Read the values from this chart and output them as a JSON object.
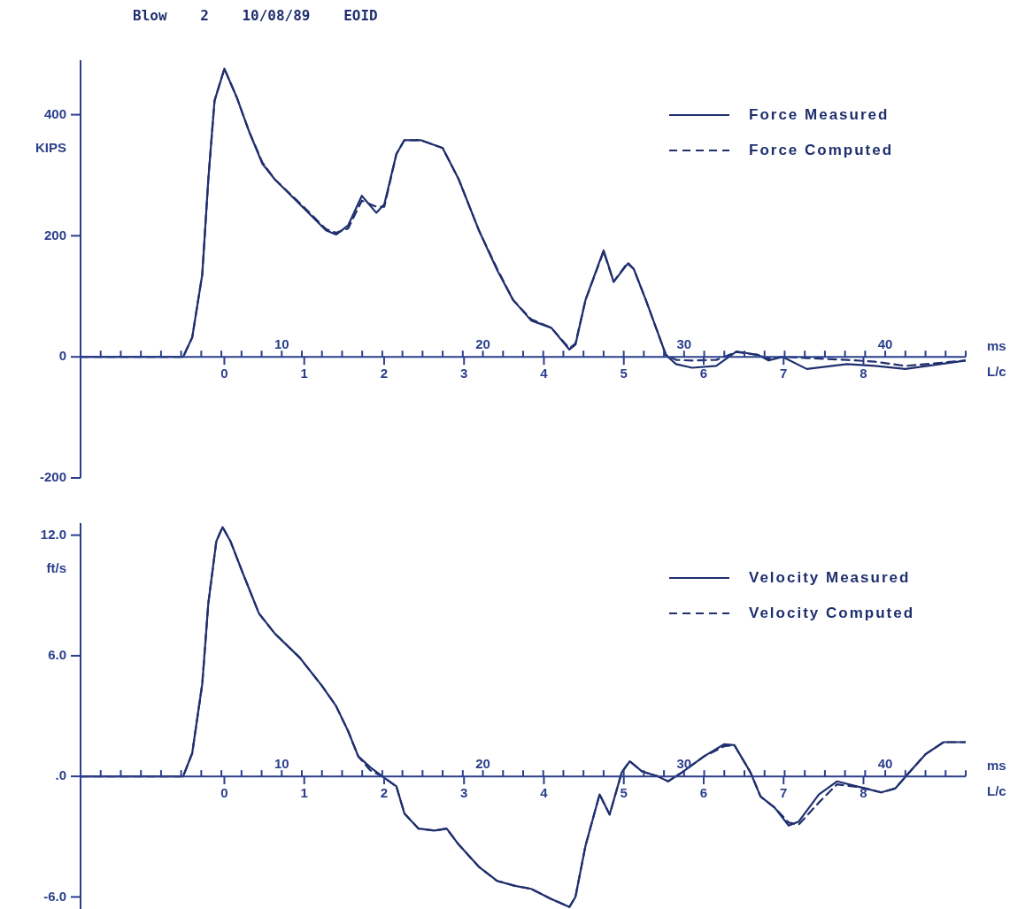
{
  "chart_data": [
    {
      "type": "line",
      "title": "Blow 2 10/08/89 EOID",
      "ylabel": "KIPS",
      "xlabel": "ms",
      "x2label": "L/c",
      "xlim": [
        0,
        44
      ],
      "ylim": [
        -200,
        490
      ],
      "x2lim": [
        -1.8,
        9.28
      ],
      "xticks": [
        {
          "value": 1,
          "label": null
        },
        {
          "value": 2,
          "label": null
        },
        {
          "value": 3,
          "label": null
        },
        {
          "value": 4,
          "label": null
        },
        {
          "value": 5,
          "label": null
        },
        {
          "value": 6,
          "label": null
        },
        {
          "value": 7,
          "label": null
        },
        {
          "value": 8,
          "label": null
        },
        {
          "value": 9,
          "label": null
        },
        10,
        {
          "value": 11,
          "label": null
        },
        {
          "value": 12,
          "label": null
        },
        {
          "value": 13,
          "label": null
        },
        {
          "value": 14,
          "label": null
        },
        {
          "value": 15,
          "label": null
        },
        {
          "value": 16,
          "label": null
        },
        {
          "value": 17,
          "label": null
        },
        {
          "value": 18,
          "label": null
        },
        {
          "value": 19,
          "label": null
        },
        20,
        {
          "value": 21,
          "label": null
        },
        {
          "value": 22,
          "label": null
        },
        {
          "value": 23,
          "label": null
        },
        {
          "value": 24,
          "label": null
        },
        {
          "value": 25,
          "label": null
        },
        {
          "value": 26,
          "label": null
        },
        {
          "value": 27,
          "label": null
        },
        {
          "value": 28,
          "label": null
        },
        {
          "value": 29,
          "label": null
        },
        30,
        {
          "value": 31,
          "label": null
        },
        {
          "value": 32,
          "label": null
        },
        {
          "value": 33,
          "label": null
        },
        {
          "value": 34,
          "label": null
        },
        {
          "value": 35,
          "label": null
        },
        {
          "value": 36,
          "label": null
        },
        {
          "value": 37,
          "label": null
        },
        {
          "value": 38,
          "label": null
        },
        {
          "value": 39,
          "label": null
        },
        40,
        {
          "value": 41,
          "label": null
        },
        {
          "value": 42,
          "label": null
        },
        {
          "value": 43,
          "label": null
        },
        {
          "value": 44,
          "label": null
        }
      ],
      "x2ticks": [
        0,
        1,
        2,
        3,
        4,
        5,
        6,
        7,
        8
      ],
      "yticks": [
        -200,
        0,
        200,
        400
      ],
      "legend": "top right",
      "marker": "none",
      "series": [
        {
          "name": "Force Measured",
          "color": "#1f2f6e",
          "line_style": "solid",
          "x": [
            0,
            5.1,
            5.55,
            6.05,
            6.35,
            6.66,
            7.15,
            7.76,
            8.38,
            9.04,
            9.66,
            10.9,
            12.2,
            12.7,
            13.3,
            13.98,
            14.7,
            15.1,
            15.7,
            16.1,
            16.9,
            18.0,
            18.8,
            19.8,
            20.7,
            21.5,
            22.4,
            23.4,
            24.3,
            24.6,
            25.1,
            26.0,
            26.5,
            27.2,
            27.5,
            28.1,
            29.1,
            29.6,
            30.4,
            31.6,
            32.6,
            33.7,
            34.2,
            34.9,
            36.1,
            38.1,
            39.5,
            41.0,
            44
          ],
          "values": [
            0,
            0,
            32,
            136,
            293,
            423,
            476,
            429,
            372,
            319,
            293,
            252,
            209,
            202,
            217,
            266,
            238,
            252,
            335,
            358,
            358,
            345,
            293,
            209,
            144,
            94,
            60,
            48,
            12,
            20,
            94,
            176,
            124,
            154,
            145,
            94,
            3,
            -12,
            -18,
            -15,
            9,
            3,
            -6,
            0,
            -20,
            -12,
            -15,
            -20,
            -6
          ]
        },
        {
          "name": "Force Computed",
          "color": "#1f2f6e",
          "line_style": "dashed",
          "x": [
            0,
            5.1,
            5.55,
            6.05,
            6.35,
            6.66,
            7.15,
            7.76,
            8.38,
            9.04,
            9.66,
            10.9,
            12.2,
            12.7,
            13.3,
            13.98,
            14.7,
            15.1,
            15.7,
            16.1,
            16.9,
            18.0,
            18.8,
            19.8,
            20.7,
            21.5,
            22.4,
            23.4,
            24.3,
            24.6,
            25.1,
            26.0,
            26.5,
            27.2,
            27.5,
            28.1,
            29.1,
            29.6,
            30.4,
            31.6,
            32.6,
            33.7,
            34.2,
            34.9,
            36.1,
            38.1,
            39.5,
            41.0,
            44
          ],
          "values": [
            0,
            0,
            32,
            136,
            293,
            423,
            476,
            429,
            372,
            321,
            293,
            254,
            211,
            205,
            212,
            258,
            248,
            248,
            335,
            358,
            358,
            345,
            293,
            209,
            146,
            94,
            62,
            48,
            14,
            22,
            94,
            174,
            124,
            156,
            145,
            94,
            3,
            -5,
            -6,
            -5,
            8,
            3,
            -3,
            0,
            -2,
            -5,
            -8,
            -15,
            -6
          ]
        }
      ]
    },
    {
      "type": "line",
      "ylabel": "ft/s",
      "xlabel": "ms",
      "x2label": "L/c",
      "xlim": [
        0,
        44
      ],
      "ylim": [
        -6.6,
        12.6
      ],
      "x2lim": [
        -1.8,
        9.28
      ],
      "xticks": [
        {
          "value": 1,
          "label": null
        },
        {
          "value": 2,
          "label": null
        },
        {
          "value": 3,
          "label": null
        },
        {
          "value": 4,
          "label": null
        },
        {
          "value": 5,
          "label": null
        },
        {
          "value": 6,
          "label": null
        },
        {
          "value": 7,
          "label": null
        },
        {
          "value": 8,
          "label": null
        },
        {
          "value": 9,
          "label": null
        },
        10,
        {
          "value": 11,
          "label": null
        },
        {
          "value": 12,
          "label": null
        },
        {
          "value": 13,
          "label": null
        },
        {
          "value": 14,
          "label": null
        },
        {
          "value": 15,
          "label": null
        },
        {
          "value": 16,
          "label": null
        },
        {
          "value": 17,
          "label": null
        },
        {
          "value": 18,
          "label": null
        },
        {
          "value": 19,
          "label": null
        },
        20,
        {
          "value": 21,
          "label": null
        },
        {
          "value": 22,
          "label": null
        },
        {
          "value": 23,
          "label": null
        },
        {
          "value": 24,
          "label": null
        },
        {
          "value": 25,
          "label": null
        },
        {
          "value": 26,
          "label": null
        },
        {
          "value": 27,
          "label": null
        },
        {
          "value": 28,
          "label": null
        },
        {
          "value": 29,
          "label": null
        },
        30,
        {
          "value": 31,
          "label": null
        },
        {
          "value": 32,
          "label": null
        },
        {
          "value": 33,
          "label": null
        },
        {
          "value": 34,
          "label": null
        },
        {
          "value": 35,
          "label": null
        },
        {
          "value": 36,
          "label": null
        },
        {
          "value": 37,
          "label": null
        },
        {
          "value": 38,
          "label": null
        },
        {
          "value": 39,
          "label": null
        },
        40,
        {
          "value": 41,
          "label": null
        },
        {
          "value": 42,
          "label": null
        },
        {
          "value": 43,
          "label": null
        },
        {
          "value": 44,
          "label": null
        }
      ],
      "x2ticks": [
        0,
        1,
        2,
        3,
        4,
        5,
        6,
        7,
        8
      ],
      "yticks": [
        {
          "value": -6,
          "label": "-6.0"
        },
        {
          "value": 0,
          "label": ".0"
        },
        {
          "value": 6,
          "label": "6.0"
        },
        {
          "value": 12,
          "label": "12.0"
        }
      ],
      "legend": "top right",
      "marker": "none",
      "series": [
        {
          "name": "Velocity Measured",
          "color": "#1f2f6e",
          "line_style": "solid",
          "x": [
            0,
            5.1,
            5.55,
            6.05,
            6.35,
            6.75,
            7.06,
            7.45,
            8.07,
            8.87,
            9.66,
            10.9,
            12.0,
            12.7,
            13.3,
            13.8,
            14.4,
            15.0,
            15.7,
            16.1,
            16.8,
            17.6,
            18.2,
            18.8,
            19.8,
            20.7,
            21.6,
            22.4,
            23.4,
            24.3,
            24.6,
            25.1,
            25.8,
            26.3,
            26.9,
            27.3,
            27.9,
            28.7,
            29.2,
            29.9,
            31.0,
            32.0,
            32.5,
            33.3,
            33.8,
            34.5,
            35.2,
            35.7,
            36.7,
            37.6,
            38.8,
            39.8,
            40.5,
            41.2,
            42.0,
            42.9,
            44
          ],
          "values": [
            0,
            0,
            1.15,
            4.6,
            8.6,
            11.7,
            12.4,
            11.7,
            10.1,
            8.1,
            7.1,
            5.9,
            4.5,
            3.5,
            2.25,
            1.0,
            0.45,
            0,
            -0.5,
            -1.85,
            -2.6,
            -2.7,
            -2.6,
            -3.4,
            -4.5,
            -5.2,
            -5.45,
            -5.6,
            -6.1,
            -6.5,
            -6.0,
            -3.45,
            -0.9,
            -1.9,
            0.2,
            0.75,
            0.25,
            0,
            -0.25,
            0.2,
            1.0,
            1.6,
            1.55,
            0.2,
            -1.0,
            -1.55,
            -2.45,
            -2.25,
            -0.9,
            -0.25,
            -0.55,
            -0.8,
            -0.6,
            0.2,
            1.1,
            1.7,
            1.7
          ]
        },
        {
          "name": "Velocity Computed",
          "color": "#1f2f6e",
          "line_style": "dashed",
          "x": [
            0,
            5.1,
            5.55,
            6.05,
            6.35,
            6.75,
            7.06,
            7.45,
            8.07,
            8.87,
            9.66,
            10.9,
            12.0,
            12.7,
            13.3,
            13.8,
            14.4,
            15.0,
            15.7,
            16.1,
            16.8,
            17.6,
            18.2,
            18.8,
            19.8,
            20.7,
            21.6,
            22.4,
            23.4,
            24.3,
            24.6,
            25.1,
            25.8,
            26.3,
            26.9,
            27.3,
            27.9,
            28.7,
            29.2,
            29.9,
            31.0,
            32.0,
            32.5,
            33.3,
            33.8,
            34.5,
            35.2,
            35.7,
            36.7,
            37.6,
            38.8,
            39.8,
            40.5,
            41.2,
            42.0,
            42.9,
            44
          ],
          "values": [
            0,
            0,
            1.15,
            4.6,
            8.6,
            11.7,
            12.4,
            11.7,
            10.1,
            8.1,
            7.1,
            5.9,
            4.5,
            3.5,
            2.25,
            1.0,
            0.3,
            0,
            -0.5,
            -1.85,
            -2.6,
            -2.7,
            -2.6,
            -3.4,
            -4.5,
            -5.2,
            -5.45,
            -5.6,
            -6.1,
            -6.5,
            -6.0,
            -3.45,
            -0.9,
            -1.9,
            0.2,
            0.75,
            0.25,
            0,
            -0.25,
            0.2,
            1.0,
            1.5,
            1.55,
            0.2,
            -1.0,
            -1.55,
            -2.3,
            -2.4,
            -1.3,
            -0.4,
            -0.55,
            -0.8,
            -0.6,
            0.2,
            1.1,
            1.7,
            1.7
          ]
        }
      ]
    }
  ]
}
